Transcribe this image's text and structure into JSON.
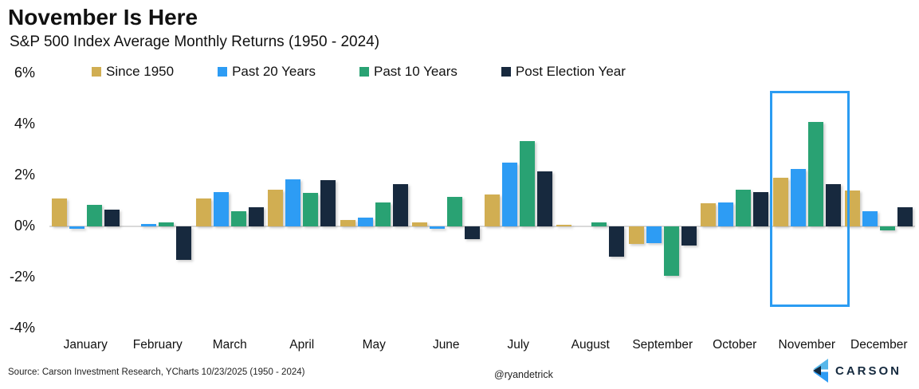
{
  "header": {
    "title": "November Is Here",
    "subtitle": "S&P 500 Index Average Monthly Returns (1950 - 2024)"
  },
  "chart_data": {
    "type": "bar",
    "title": "November Is Here",
    "subtitle": "S&P 500 Index Average Monthly Returns (1950 - 2024)",
    "categories": [
      "January",
      "February",
      "March",
      "April",
      "May",
      "June",
      "July",
      "August",
      "September",
      "October",
      "November",
      "December"
    ],
    "series": [
      {
        "name": "Since 1950",
        "color": "#d1ae52",
        "values": [
          1.1,
          0.0,
          1.1,
          1.45,
          0.25,
          0.15,
          1.25,
          0.05,
          -0.7,
          0.9,
          1.9,
          1.4
        ]
      },
      {
        "name": "Past 20 Years",
        "color": "#2d9cf4",
        "values": [
          -0.1,
          0.1,
          1.35,
          1.85,
          0.35,
          -0.1,
          2.5,
          0.0,
          -0.65,
          0.95,
          2.25,
          0.6
        ]
      },
      {
        "name": "Past 10 Years",
        "color": "#29a273",
        "values": [
          0.85,
          0.15,
          0.6,
          1.3,
          0.95,
          1.15,
          3.35,
          0.15,
          -1.95,
          1.45,
          4.1,
          -0.15
        ]
      },
      {
        "name": "Post Election Year",
        "color": "#17293e",
        "values": [
          0.65,
          -1.3,
          0.75,
          1.8,
          1.65,
          -0.5,
          2.15,
          -1.2,
          -0.75,
          1.35,
          1.65,
          0.75
        ]
      }
    ],
    "xlabel": "",
    "ylabel": "",
    "y_ticks": [
      "6%",
      "4%",
      "2%",
      "0%",
      "-2%",
      "-4%"
    ],
    "ylim": [
      -4,
      6
    ],
    "grid": "zero-line-only",
    "legend_position": "top",
    "highlight": {
      "month": "November",
      "border_color": "#2b9cf2"
    }
  },
  "footer": {
    "source": "Source: Carson Investment Research, YCharts 10/23/2025 (1950 - 2024)",
    "handle": "@ryandetrick",
    "brand": "CARSON"
  }
}
